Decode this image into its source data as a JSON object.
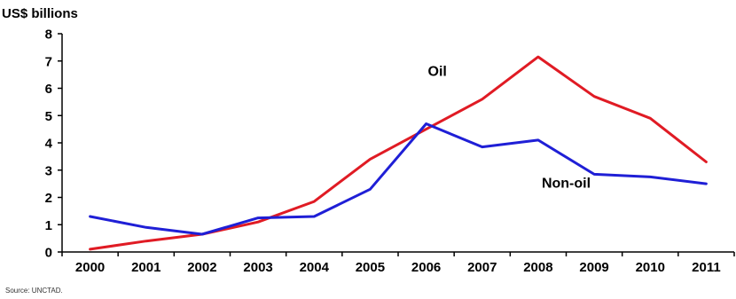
{
  "chart_data": {
    "type": "line",
    "title": "",
    "ylabel": "US$ billions",
    "xlabel": "",
    "x": [
      "2000",
      "2001",
      "2002",
      "2003",
      "2004",
      "2005",
      "2006",
      "2007",
      "2008",
      "2009",
      "2010",
      "2011"
    ],
    "ylim": [
      0,
      8
    ],
    "yticks": [
      "0",
      "1",
      "2",
      "3",
      "4",
      "5",
      "6",
      "7",
      "8"
    ],
    "grid": false,
    "series": [
      {
        "name": "Oil",
        "color": "#e01b24",
        "values": [
          0.1,
          0.4,
          0.65,
          1.1,
          1.85,
          3.4,
          4.5,
          5.6,
          7.15,
          5.7,
          4.9,
          3.3
        ]
      },
      {
        "name": "Non-oil",
        "color": "#1f1fd6",
        "values": [
          1.3,
          0.9,
          0.65,
          1.25,
          1.3,
          2.3,
          4.7,
          3.85,
          4.1,
          2.85,
          2.75,
          2.5
        ]
      }
    ],
    "source": "Source: UNCTAD."
  }
}
